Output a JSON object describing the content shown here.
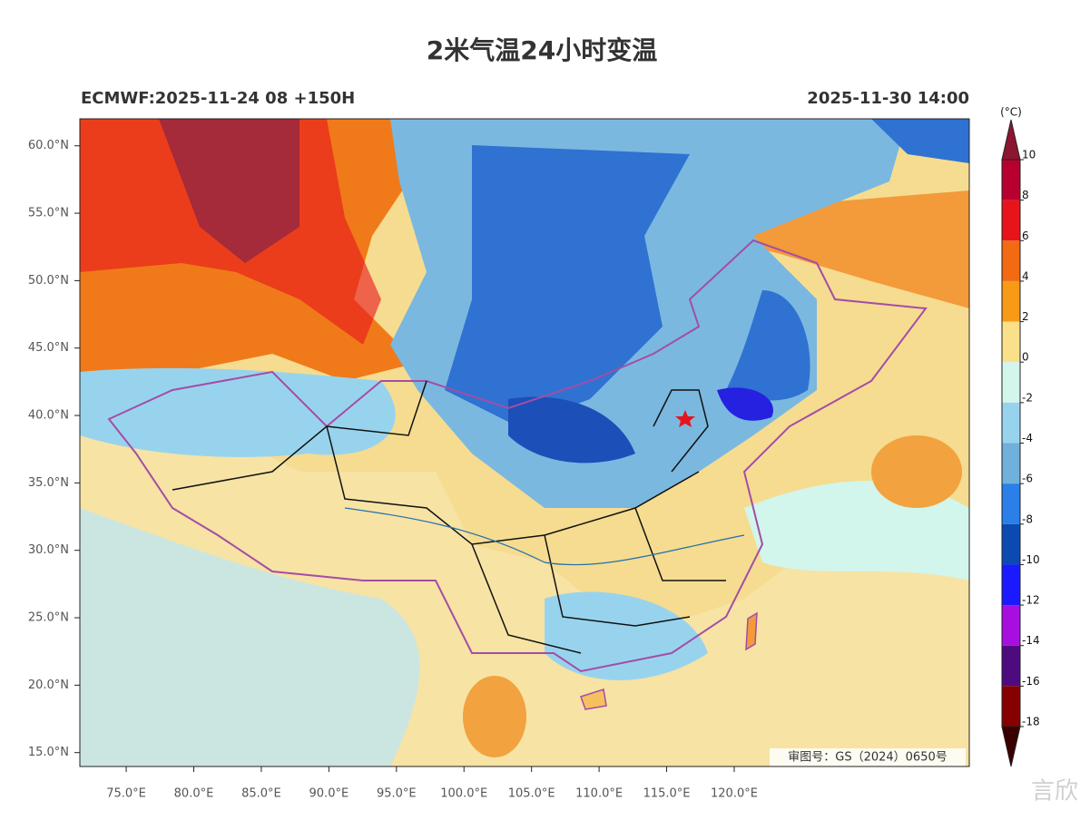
{
  "title": "2米气温24小时变温",
  "model_run": "ECMWF:2025-11-24 08 +150H",
  "valid_time": "2025-11-30 14:00",
  "map_approval": "审图号：GS（2024）0650号",
  "watermark": "言欣",
  "map": {
    "lon_range": [
      71.57,
      137.4
    ],
    "lat_range": [
      13.97,
      62.0
    ],
    "lon_ticks": [
      {
        "value": 75,
        "label": "75.0°E"
      },
      {
        "value": 80,
        "label": "80.0°E"
      },
      {
        "value": 85,
        "label": "85.0°E"
      },
      {
        "value": 90,
        "label": "90.0°E"
      },
      {
        "value": 95,
        "label": "95.0°E"
      },
      {
        "value": 100,
        "label": "100.0°E"
      },
      {
        "value": 105,
        "label": "105.0°E"
      },
      {
        "value": 110,
        "label": "110.0°E"
      },
      {
        "value": 115,
        "label": "115.0°E"
      },
      {
        "value": 120,
        "label": "120.0°E"
      }
    ],
    "lat_ticks": [
      {
        "value": 60,
        "label": "60.0°N"
      },
      {
        "value": 55,
        "label": "55.0°N"
      },
      {
        "value": 50,
        "label": "50.0°N"
      },
      {
        "value": 45,
        "label": "45.0°N"
      },
      {
        "value": 40,
        "label": "40.0°N"
      },
      {
        "value": 35,
        "label": "35.0°N"
      },
      {
        "value": 30,
        "label": "30.0°N"
      },
      {
        "value": 25,
        "label": "25.0°N"
      },
      {
        "value": 20,
        "label": "20.0°N"
      },
      {
        "value": 15,
        "label": "15.0°N"
      }
    ]
  },
  "colorbar": {
    "unit": "(°C)",
    "levels": [
      10,
      8,
      6,
      4,
      2,
      0,
      -2,
      -4,
      -6,
      -8,
      -10,
      -12,
      -14,
      -16,
      -18
    ],
    "colors": [
      "#8c1630",
      "#b80030",
      "#e8141c",
      "#f26a12",
      "#f99a16",
      "#fbe08a",
      "#d2f5ec",
      "#98d3ee",
      "#6fb0dc",
      "#2a7fe8",
      "#0b4ab0",
      "#1a19ff",
      "#a80fdf",
      "#4e0a7f",
      "#870000",
      "#3a0000"
    ]
  }
}
